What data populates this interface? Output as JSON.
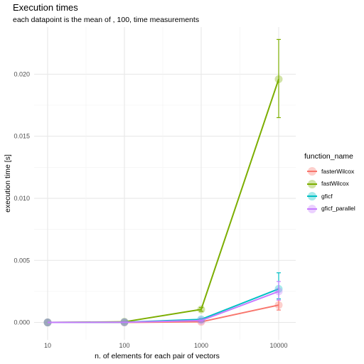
{
  "chart_data": {
    "type": "line",
    "title": "Execution times",
    "subtitle": "each datapoint is the mean of , 100,  time measurements",
    "xlabel": "n. of elements for each pair of vectors",
    "ylabel": "execution time [s]",
    "x_scale": "log10",
    "x": [
      10,
      100,
      1000,
      10000
    ],
    "x_tick_labels": [
      "10",
      "100",
      "1000",
      "10000"
    ],
    "y_ticks": [
      0.0,
      0.005,
      0.01,
      0.015,
      0.02
    ],
    "y_tick_labels": [
      "0.000",
      "0.005",
      "0.010",
      "0.015",
      "0.020"
    ],
    "ylim": [
      -0.0014,
      0.0238
    ],
    "grid": true,
    "legend": {
      "title": "function_name",
      "position": "right"
    },
    "series": [
      {
        "name": "fasterWilcox",
        "color": "#F8766D",
        "values": [
          0.0,
          0.0,
          5e-05,
          0.0014
        ],
        "err_low": [
          0.0,
          0.0,
          3e-05,
          0.001
        ],
        "err_high": [
          0.0,
          0.0,
          7e-05,
          0.0018
        ]
      },
      {
        "name": "fastWilcox",
        "color": "#7CAE00",
        "values": [
          0.0,
          5e-05,
          0.00105,
          0.0196
        ],
        "err_low": [
          0.0,
          4e-05,
          0.0009,
          0.0165
        ],
        "err_high": [
          0.0,
          6e-05,
          0.0012,
          0.0228
        ]
      },
      {
        "name": "gficf",
        "color": "#00BFC4",
        "values": [
          0.0,
          2e-05,
          0.00025,
          0.0027
        ],
        "err_low": [
          0.0,
          1e-05,
          0.0002,
          0.0019
        ],
        "err_high": [
          0.0,
          3e-05,
          0.0003,
          0.004
        ]
      },
      {
        "name": "gficf_parallel",
        "color": "#C77CFF",
        "values": [
          0.0,
          2e-05,
          0.00015,
          0.0025
        ],
        "err_low": [
          0.0,
          1e-05,
          0.0001,
          0.0018
        ],
        "err_high": [
          0.0,
          3e-05,
          0.0002,
          0.0033
        ]
      }
    ]
  }
}
